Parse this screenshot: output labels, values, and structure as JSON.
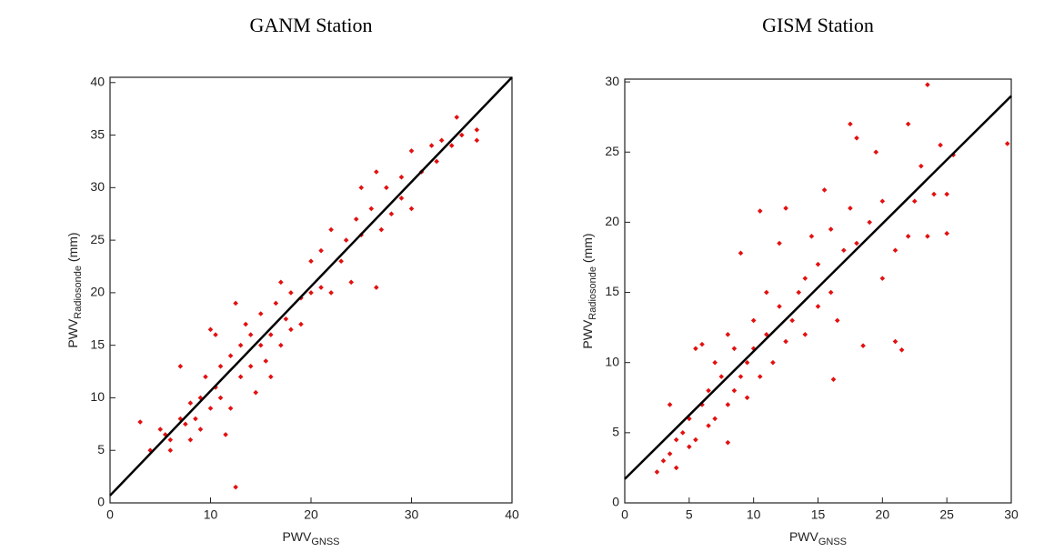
{
  "chart_data": [
    {
      "type": "scatter",
      "title": "GANM Station",
      "xlabel": {
        "text": "PWV",
        "subscript": "GNSS"
      },
      "ylabel": {
        "text": "PWV",
        "subscript": "Radiosonde",
        "suffix": " (mm)"
      },
      "color": "#e31010",
      "x": [
        3,
        4,
        5,
        5.5,
        6,
        6,
        7,
        7,
        7.5,
        8,
        8,
        8.5,
        9,
        9,
        9.5,
        10,
        10,
        10.5,
        10.5,
        11,
        11,
        11.5,
        12,
        12,
        12.5,
        12.5,
        13,
        13,
        13.5,
        14,
        14,
        14.5,
        15,
        15,
        15.5,
        16,
        16,
        16.5,
        17,
        17,
        17.5,
        18,
        18,
        19,
        19,
        20,
        20,
        21,
        21,
        22,
        22,
        23,
        23.5,
        24,
        24.5,
        25,
        25,
        26,
        26.5,
        26.5,
        27,
        27.5,
        28,
        29,
        29,
        30,
        30,
        31,
        32,
        32.5,
        33,
        34,
        34.5,
        35,
        36.5,
        36.5
      ],
      "values": [
        7.7,
        5,
        7,
        6.5,
        5,
        6,
        13,
        8,
        7.5,
        9.5,
        6,
        8,
        7,
        10,
        12,
        9,
        16.5,
        16,
        11,
        10,
        13,
        6.5,
        9,
        14,
        1.5,
        19,
        12,
        15,
        17,
        13,
        16,
        10.5,
        15,
        18,
        13.5,
        16,
        12,
        19,
        15,
        21,
        17.5,
        16.5,
        20,
        19.5,
        17,
        20,
        23,
        20.5,
        24,
        20,
        26,
        23,
        25,
        21,
        27,
        25.5,
        30,
        28,
        20.5,
        31.5,
        26,
        30,
        27.5,
        31,
        29,
        28,
        33.5,
        31.5,
        34,
        32.5,
        34.5,
        34,
        36.7,
        35,
        35.5,
        34.5
      ],
      "fit_line": {
        "color": "#000000",
        "x": [
          0,
          40
        ],
        "y": [
          0.7,
          40.5
        ]
      },
      "xlim": [
        0,
        40
      ],
      "ylim": [
        0,
        40.5
      ],
      "xticks": [
        0,
        10,
        20,
        30,
        40
      ],
      "yticks": [
        0,
        5,
        10,
        15,
        20,
        25,
        30,
        35,
        40
      ]
    },
    {
      "type": "scatter",
      "title": "GISM Station",
      "xlabel": {
        "text": "PWV",
        "subscript": "GNSS"
      },
      "ylabel": {
        "text": "PWV",
        "subscript": "Radiosonde",
        "suffix": " (mm)"
      },
      "color": "#e31010",
      "x": [
        2.5,
        3,
        3.5,
        3.5,
        4,
        4,
        4.5,
        5,
        5,
        5.5,
        5.5,
        6,
        6,
        6.5,
        6.5,
        7,
        7,
        7.5,
        8,
        8,
        8,
        8.5,
        8.5,
        9,
        9,
        9.5,
        9.5,
        10,
        10,
        10.5,
        10.5,
        11,
        11,
        11.5,
        12,
        12,
        12.5,
        12.5,
        13,
        13.5,
        14,
        14,
        14.5,
        15,
        15,
        15.5,
        16,
        16,
        16.2,
        16.5,
        17,
        17.5,
        17.5,
        18,
        18,
        18.5,
        19,
        19.5,
        20,
        20,
        21,
        21,
        21.5,
        22,
        22,
        22.5,
        23,
        23.5,
        23.5,
        24,
        24.5,
        25,
        25,
        29.7,
        25.5
      ],
      "values": [
        2.2,
        3,
        3.5,
        7,
        4.5,
        2.5,
        5,
        6,
        4,
        4.5,
        11,
        7,
        11.3,
        8,
        5.5,
        6,
        10,
        9,
        4.3,
        7,
        12,
        8,
        11,
        17.8,
        9,
        10,
        7.5,
        11,
        13,
        20.8,
        9,
        12,
        15,
        10,
        18.5,
        14,
        11.5,
        21,
        13,
        15,
        12,
        16,
        19,
        14,
        17,
        22.3,
        19.5,
        15,
        8.8,
        13,
        18,
        27,
        21,
        26,
        18.5,
        11.2,
        20,
        25,
        21.5,
        16,
        18,
        11.5,
        10.9,
        19,
        27,
        21.5,
        24,
        29.8,
        19,
        22,
        25.5,
        19.2,
        22,
        25.6,
        24.8
      ],
      "fit_line": {
        "color": "#000000",
        "x": [
          0,
          30
        ],
        "y": [
          1.7,
          29
        ]
      },
      "xlim": [
        0,
        30
      ],
      "ylim": [
        0,
        30.2
      ],
      "xticks": [
        0,
        5,
        10,
        15,
        20,
        25,
        30
      ],
      "yticks": [
        0,
        5,
        10,
        15,
        20,
        25,
        30
      ]
    }
  ]
}
